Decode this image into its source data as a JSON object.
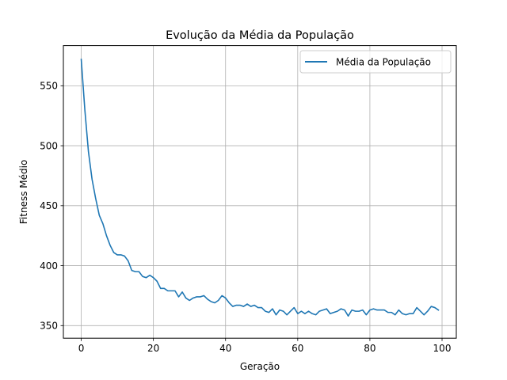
{
  "chart_data": {
    "type": "line",
    "title": "Evolução da Média da População",
    "xlabel": "Geração",
    "ylabel": "Fitness Médio",
    "xlim": [
      -4.95,
      103.95
    ],
    "ylim": [
      339.5,
      583.5
    ],
    "xticks": [
      0,
      20,
      40,
      60,
      80,
      100
    ],
    "yticks": [
      350,
      400,
      450,
      500,
      550
    ],
    "grid": true,
    "legend_position": "upper right",
    "series": [
      {
        "name": "Média da População",
        "color": "#1f77b4",
        "x": [
          0,
          1,
          2,
          3,
          4,
          5,
          6,
          7,
          8,
          9,
          10,
          11,
          12,
          13,
          14,
          15,
          16,
          17,
          18,
          19,
          20,
          21,
          22,
          23,
          24,
          25,
          26,
          27,
          28,
          29,
          30,
          31,
          32,
          33,
          34,
          35,
          36,
          37,
          38,
          39,
          40,
          41,
          42,
          43,
          44,
          45,
          46,
          47,
          48,
          49,
          50,
          51,
          52,
          53,
          54,
          55,
          56,
          57,
          58,
          59,
          60,
          61,
          62,
          63,
          64,
          65,
          66,
          67,
          68,
          69,
          70,
          71,
          72,
          73,
          74,
          75,
          76,
          77,
          78,
          79,
          80,
          81,
          82,
          83,
          84,
          85,
          86,
          87,
          88,
          89,
          90,
          91,
          92,
          93,
          94,
          95,
          96,
          97,
          98,
          99
        ],
        "values": [
          572,
          530,
          495,
          472,
          456,
          442,
          435,
          425,
          417,
          411,
          409,
          409,
          408,
          404,
          396,
          395,
          395,
          391,
          390,
          392,
          390,
          387,
          381,
          381,
          379,
          379,
          379,
          374,
          378,
          373,
          371,
          373,
          374,
          374,
          375,
          372,
          370,
          369,
          371,
          375,
          373,
          369,
          366,
          367,
          367,
          366,
          368,
          366,
          367,
          365,
          365,
          362,
          361,
          364,
          359,
          363,
          362,
          359,
          362,
          365,
          360,
          362,
          360,
          362,
          360,
          359,
          362,
          363,
          364,
          360,
          361,
          362,
          364,
          363,
          358,
          363,
          362,
          362,
          363,
          359,
          363,
          364,
          363,
          363,
          363,
          361,
          361,
          359,
          363,
          360,
          359,
          360,
          360,
          365,
          362,
          359,
          362,
          366,
          365,
          363
        ]
      }
    ]
  }
}
